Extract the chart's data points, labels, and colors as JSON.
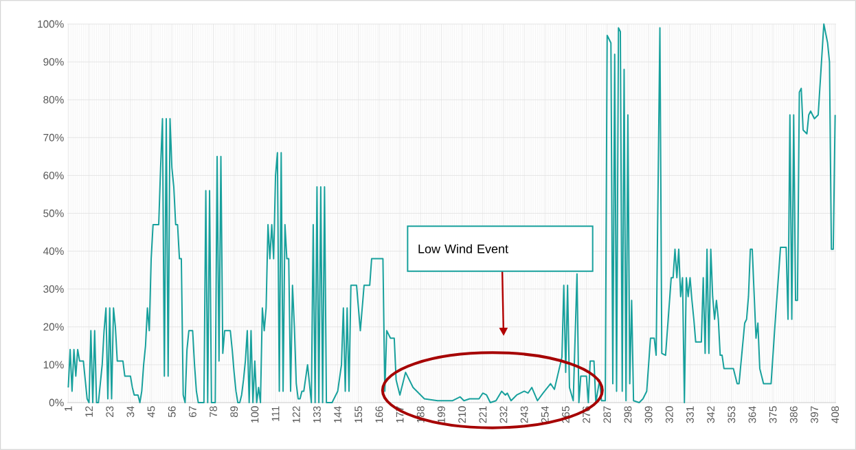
{
  "chart_data": {
    "type": "line",
    "color": "#17a09c",
    "grid": true,
    "x": [
      1,
      2,
      3,
      4,
      5,
      6,
      7,
      9,
      10,
      11,
      12,
      13,
      14,
      15,
      16,
      17,
      18,
      19,
      20,
      21,
      22,
      23,
      24,
      25,
      26,
      27,
      30,
      31,
      34,
      35,
      36,
      38,
      39,
      40,
      41,
      42,
      43,
      44,
      45,
      46,
      49,
      50,
      51,
      52,
      53,
      54,
      55,
      56,
      57,
      58,
      59,
      60,
      61,
      62,
      63,
      64,
      65,
      67,
      68,
      69,
      70,
      73,
      74,
      75,
      76,
      77,
      79,
      80,
      81,
      82,
      83,
      84,
      87,
      88,
      89,
      90,
      91,
      92,
      93,
      94,
      95,
      96,
      97,
      98,
      99,
      100,
      101,
      102,
      103,
      104,
      105,
      106,
      107,
      108,
      109,
      110,
      111,
      112,
      113,
      114,
      115,
      116,
      117,
      118,
      119,
      120,
      121,
      122,
      123,
      124,
      125,
      126,
      128,
      130,
      131,
      132,
      133,
      134,
      135,
      136,
      137,
      138,
      141,
      144,
      146,
      147,
      148,
      149,
      150,
      151,
      154,
      156,
      158,
      161,
      162,
      168,
      169,
      170,
      172,
      174,
      175,
      177,
      180,
      184,
      190,
      197,
      205,
      209,
      211,
      214,
      219,
      221,
      223,
      225,
      228,
      231,
      233,
      234,
      236,
      239,
      243,
      245,
      247,
      250,
      253,
      257,
      259,
      263,
      264,
      265,
      266,
      267,
      269,
      271,
      272,
      273,
      276,
      277,
      278,
      280,
      281,
      283,
      284,
      286,
      287,
      289,
      290,
      291,
      292,
      293,
      294,
      295,
      296,
      297,
      298,
      299,
      300,
      301,
      304,
      306,
      308,
      310,
      312,
      313,
      315,
      316,
      318,
      321,
      322,
      323,
      324,
      325,
      326,
      327,
      328,
      329,
      330,
      331,
      332,
      333,
      334,
      337,
      338,
      339,
      340,
      341,
      342,
      343,
      344,
      345,
      346,
      347,
      348,
      349,
      354,
      356,
      357,
      360,
      361,
      362,
      363,
      364,
      366,
      367,
      368,
      370,
      374,
      376,
      379,
      382,
      383,
      384,
      385,
      386,
      387,
      388,
      389,
      390,
      391,
      393,
      394,
      395,
      397,
      399,
      402,
      404,
      405,
      406,
      407,
      408
    ],
    "values": [
      4,
      14,
      3,
      14,
      7,
      14,
      11,
      11,
      6,
      1,
      0,
      19,
      0,
      19,
      0,
      0,
      5,
      10,
      19,
      25,
      1,
      25,
      1,
      25,
      20,
      11,
      11,
      7,
      7,
      4,
      2,
      2,
      0,
      3,
      10,
      15,
      25,
      19,
      38,
      47,
      47,
      62,
      75,
      7,
      75,
      7,
      75,
      62,
      57,
      47,
      47,
      38,
      38,
      2,
      0,
      14,
      19,
      19,
      10,
      3,
      0,
      0,
      56,
      0,
      56,
      0,
      0,
      65,
      11,
      65,
      13,
      19,
      19,
      14,
      8,
      3,
      0,
      0,
      2,
      6,
      11,
      19,
      0,
      19,
      0,
      11,
      0,
      4,
      0,
      25,
      19,
      25,
      47,
      38,
      47,
      38,
      60,
      66,
      3,
      66,
      3,
      47,
      38,
      38,
      3,
      31,
      20,
      5,
      1,
      1,
      3,
      3,
      10,
      0,
      47,
      0,
      57,
      0,
      57,
      0,
      57,
      0,
      0,
      3,
      10,
      25,
      3,
      25,
      3,
      31,
      31,
      19,
      31,
      31,
      38,
      38,
      3,
      19,
      17,
      17,
      6,
      2,
      8,
      4,
      1,
      0.5,
      0.5,
      1.5,
      0.5,
      1,
      1,
      2.5,
      2,
      0,
      0.5,
      3,
      2,
      2.5,
      0.5,
      2,
      3,
      2.5,
      4,
      0.5,
      2.5,
      5,
      3.5,
      12,
      31,
      8,
      31,
      4,
      0.5,
      34,
      0,
      7,
      7,
      0,
      11,
      11,
      0,
      6,
      0.5,
      0.5,
      97,
      95,
      5,
      92,
      3,
      99,
      98,
      3,
      88,
      0.5,
      76,
      5,
      27,
      0.5,
      0,
      1,
      3,
      17,
      17,
      12.5,
      99,
      13,
      12.5,
      33,
      33,
      40.5,
      33,
      40.5,
      28,
      33,
      0,
      33,
      28,
      33,
      27,
      22,
      16,
      16,
      33,
      13,
      40.5,
      13,
      40.5,
      28,
      22,
      27,
      22,
      12.5,
      12.5,
      9,
      9,
      5,
      5,
      21,
      22,
      28,
      40.5,
      40.5,
      17,
      21,
      9,
      5,
      5,
      20,
      41,
      41,
      22,
      76,
      22,
      76,
      27,
      27,
      82,
      83,
      72,
      71,
      76,
      77,
      75,
      76,
      100,
      95,
      90,
      40.5,
      40.5,
      76
    ],
    "xlim": [
      0.5,
      408.5
    ],
    "xticks": [
      1,
      12,
      23,
      34,
      45,
      56,
      67,
      78,
      89,
      100,
      111,
      122,
      133,
      144,
      155,
      166,
      177,
      188,
      199,
      210,
      221,
      232,
      243,
      254,
      265,
      276,
      287,
      298,
      309,
      320,
      331,
      342,
      353,
      364,
      375,
      386,
      397,
      408
    ],
    "ylim": [
      0,
      100
    ],
    "yticks": [
      {
        "value": 0,
        "label": "0%"
      },
      {
        "value": 10,
        "label": "10%"
      },
      {
        "value": 20,
        "label": "20%"
      },
      {
        "value": 30,
        "label": "30%"
      },
      {
        "value": 40,
        "label": "40%"
      },
      {
        "value": 50,
        "label": "50%"
      },
      {
        "value": 60,
        "label": "60%"
      },
      {
        "value": 70,
        "label": "70%"
      },
      {
        "value": 80,
        "label": "80%"
      },
      {
        "value": 90,
        "label": "90%"
      },
      {
        "value": 100,
        "label": "100%"
      }
    ],
    "annotations": [
      "Low Wind Event"
    ]
  }
}
